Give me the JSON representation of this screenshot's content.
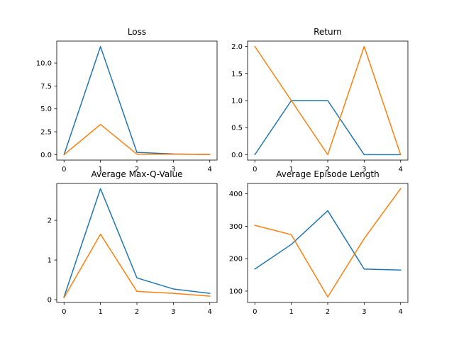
{
  "figure": {
    "background": "#ffffff"
  },
  "series_colors": [
    "#1f77b4",
    "#ff7f0e"
  ],
  "chart_data": [
    {
      "type": "line",
      "title": "Loss",
      "xlabel": "",
      "ylabel": "",
      "x": [
        0,
        1,
        2,
        3,
        4
      ],
      "xlim": [
        -0.2,
        4.2
      ],
      "ylim": [
        -0.59,
        12.4
      ],
      "xticks": [
        0,
        1,
        2,
        3,
        4
      ],
      "yticks": [
        0,
        2.5,
        5,
        7.5,
        10
      ],
      "ytick_labels": [
        "0.0",
        "2.5",
        "5.0",
        "7.5",
        "10.0"
      ],
      "grid": false,
      "series": [
        {
          "values": [
            0.0,
            11.8,
            0.25,
            0.08,
            0.02
          ]
        },
        {
          "values": [
            0.0,
            3.3,
            0.05,
            0.05,
            0.02
          ]
        }
      ]
    },
    {
      "type": "line",
      "title": "Return",
      "xlabel": "",
      "ylabel": "",
      "x": [
        0,
        1,
        2,
        3,
        4
      ],
      "xlim": [
        -0.2,
        4.2
      ],
      "ylim": [
        -0.1,
        2.1
      ],
      "xticks": [
        0,
        1,
        2,
        3,
        4
      ],
      "yticks": [
        0,
        0.5,
        1,
        1.5,
        2
      ],
      "ytick_labels": [
        "0.0",
        "0.5",
        "1.0",
        "1.5",
        "2.0"
      ],
      "grid": false,
      "series": [
        {
          "values": [
            0,
            1,
            1,
            0,
            0
          ]
        },
        {
          "values": [
            2,
            1,
            0,
            2,
            0
          ]
        }
      ]
    },
    {
      "type": "line",
      "title": "Average Max-Q-Value",
      "xlabel": "",
      "ylabel": "",
      "x": [
        0,
        1,
        2,
        3,
        4
      ],
      "xlim": [
        -0.2,
        4.2
      ],
      "ylim": [
        -0.07,
        2.93
      ],
      "xticks": [
        0,
        1,
        2,
        3,
        4
      ],
      "yticks": [
        0,
        1,
        2
      ],
      "ytick_labels": [
        "0",
        "1",
        "2"
      ],
      "grid": false,
      "series": [
        {
          "values": [
            0.07,
            2.8,
            0.55,
            0.27,
            0.16
          ]
        },
        {
          "values": [
            0.05,
            1.65,
            0.21,
            0.16,
            0.09
          ]
        }
      ]
    },
    {
      "type": "line",
      "title": "Average Episode Length",
      "xlabel": "",
      "ylabel": "",
      "x": [
        0,
        1,
        2,
        3,
        4
      ],
      "xlim": [
        -0.2,
        4.2
      ],
      "ylim": [
        65,
        432
      ],
      "xticks": [
        0,
        1,
        2,
        3,
        4
      ],
      "yticks": [
        100,
        200,
        300,
        400
      ],
      "ytick_labels": [
        "100",
        "200",
        "300",
        "400"
      ],
      "grid": false,
      "series": [
        {
          "values": [
            168,
            244,
            348,
            168,
            165
          ]
        },
        {
          "values": [
            303,
            274,
            82,
            262,
            416
          ]
        }
      ]
    }
  ]
}
